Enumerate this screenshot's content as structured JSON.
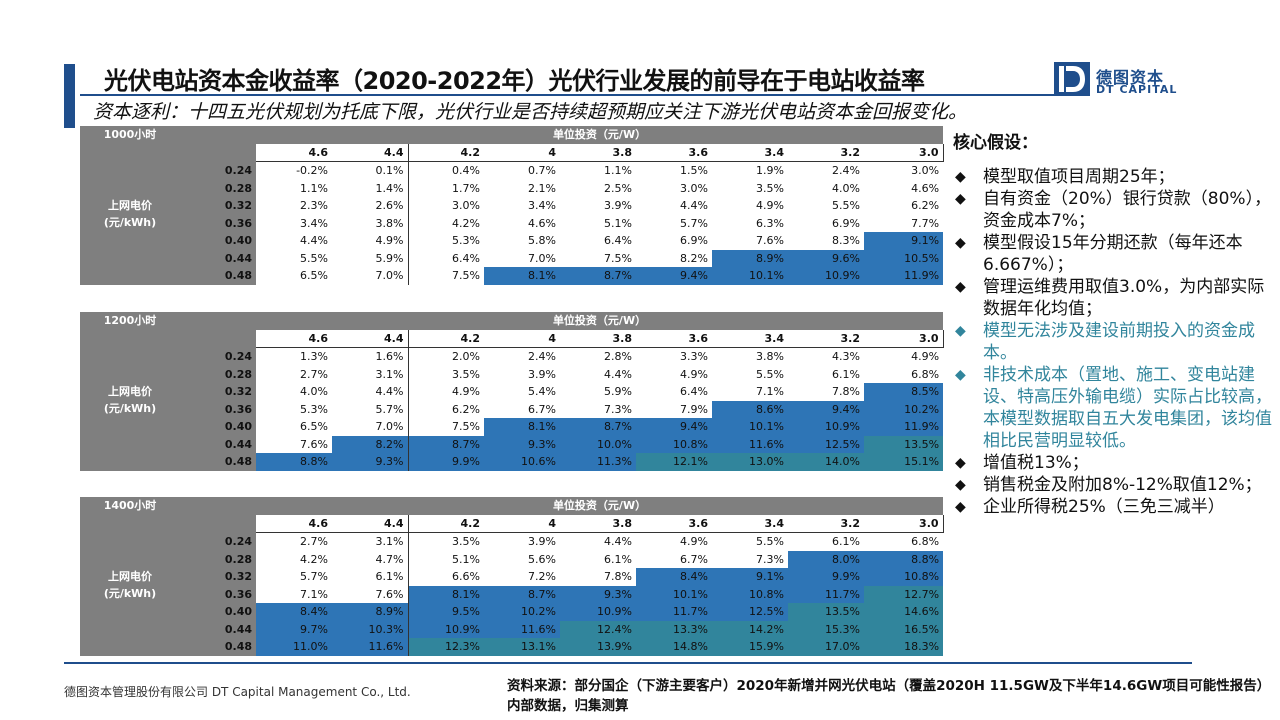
{
  "title": "光伏电站资本金收益率（2020-2022年）光伏行业发展的前导在于电站收益率",
  "subtitle": "资本逐利：十四五光伏规划为托底下限，光伏行业是否持续超预期应关注下游光伏电站资本金回报变化。",
  "logo": {
    "cn": "德图资本",
    "en": "DT CAPITAL",
    "mark": "D"
  },
  "tables": [
    {
      "hours": "1000小时",
      "investment_label": "单位投资（元/W）",
      "price_label_1": "上网电价",
      "price_label_2": "(元/kWh)",
      "investments": [
        "4.6",
        "4.4",
        "4.2",
        "4",
        "3.8",
        "3.6",
        "3.4",
        "3.2",
        "3.0"
      ],
      "prices": [
        "0.24",
        "0.28",
        "0.32",
        "0.36",
        "0.40",
        "0.44",
        "0.48"
      ],
      "rows": [
        [
          "-0.2%",
          "0.1%",
          "0.4%",
          "0.7%",
          "1.1%",
          "1.5%",
          "1.9%",
          "2.4%",
          "3.0%"
        ],
        [
          "1.1%",
          "1.4%",
          "1.7%",
          "2.1%",
          "2.5%",
          "3.0%",
          "3.5%",
          "4.0%",
          "4.6%"
        ],
        [
          "2.3%",
          "2.6%",
          "3.0%",
          "3.4%",
          "3.9%",
          "4.4%",
          "4.9%",
          "5.5%",
          "6.2%"
        ],
        [
          "3.4%",
          "3.8%",
          "4.2%",
          "4.6%",
          "5.1%",
          "5.7%",
          "6.3%",
          "6.9%",
          "7.7%"
        ],
        [
          "4.4%",
          "4.9%",
          "5.3%",
          "5.8%",
          "6.4%",
          "6.9%",
          "7.6%",
          "8.3%",
          "9.1%"
        ],
        [
          "5.5%",
          "5.9%",
          "6.4%",
          "7.0%",
          "7.5%",
          "8.2%",
          "8.9%",
          "9.6%",
          "10.5%"
        ],
        [
          "6.5%",
          "7.0%",
          "7.5%",
          "8.1%",
          "8.7%",
          "9.4%",
          "10.1%",
          "10.9%",
          "11.9%"
        ]
      ]
    },
    {
      "hours": "1200小时",
      "investment_label": "单位投资（元/W）",
      "price_label_1": "上网电价",
      "price_label_2": "(元/kWh)",
      "investments": [
        "4.6",
        "4.4",
        "4.2",
        "4",
        "3.8",
        "3.6",
        "3.4",
        "3.2",
        "3.0"
      ],
      "prices": [
        "0.24",
        "0.28",
        "0.32",
        "0.36",
        "0.40",
        "0.44",
        "0.48"
      ],
      "rows": [
        [
          "1.3%",
          "1.6%",
          "2.0%",
          "2.4%",
          "2.8%",
          "3.3%",
          "3.8%",
          "4.3%",
          "4.9%"
        ],
        [
          "2.7%",
          "3.1%",
          "3.5%",
          "3.9%",
          "4.4%",
          "4.9%",
          "5.5%",
          "6.1%",
          "6.8%"
        ],
        [
          "4.0%",
          "4.4%",
          "4.9%",
          "5.4%",
          "5.9%",
          "6.4%",
          "7.1%",
          "7.8%",
          "8.5%"
        ],
        [
          "5.3%",
          "5.7%",
          "6.2%",
          "6.7%",
          "7.3%",
          "7.9%",
          "8.6%",
          "9.4%",
          "10.2%"
        ],
        [
          "6.5%",
          "7.0%",
          "7.5%",
          "8.1%",
          "8.7%",
          "9.4%",
          "10.1%",
          "10.9%",
          "11.9%"
        ],
        [
          "7.6%",
          "8.2%",
          "8.7%",
          "9.3%",
          "10.0%",
          "10.8%",
          "11.6%",
          "12.5%",
          "13.5%"
        ],
        [
          "8.8%",
          "9.3%",
          "9.9%",
          "10.6%",
          "11.3%",
          "12.1%",
          "13.0%",
          "14.0%",
          "15.1%"
        ]
      ]
    },
    {
      "hours": "1400小时",
      "investment_label": "单位投资（元/W）",
      "price_label_1": "上网电价",
      "price_label_2": "(元/kWh)",
      "investments": [
        "4.6",
        "4.4",
        "4.2",
        "4",
        "3.8",
        "3.6",
        "3.4",
        "3.2",
        "3.0"
      ],
      "prices": [
        "0.24",
        "0.28",
        "0.32",
        "0.36",
        "0.40",
        "0.44",
        "0.48"
      ],
      "rows": [
        [
          "2.7%",
          "3.1%",
          "3.5%",
          "3.9%",
          "4.4%",
          "4.9%",
          "5.5%",
          "6.1%",
          "6.8%"
        ],
        [
          "4.2%",
          "4.7%",
          "5.1%",
          "5.6%",
          "6.1%",
          "6.7%",
          "7.3%",
          "8.0%",
          "8.8%"
        ],
        [
          "5.7%",
          "6.1%",
          "6.6%",
          "7.2%",
          "7.8%",
          "8.4%",
          "9.1%",
          "9.9%",
          "10.8%"
        ],
        [
          "7.1%",
          "7.6%",
          "8.1%",
          "8.7%",
          "9.3%",
          "10.1%",
          "10.8%",
          "11.7%",
          "12.7%"
        ],
        [
          "8.4%",
          "8.9%",
          "9.5%",
          "10.2%",
          "10.9%",
          "11.7%",
          "12.5%",
          "13.5%",
          "14.6%"
        ],
        [
          "9.7%",
          "10.3%",
          "10.9%",
          "11.6%",
          "12.4%",
          "13.3%",
          "14.2%",
          "15.3%",
          "16.5%"
        ],
        [
          "11.0%",
          "11.6%",
          "12.3%",
          "13.1%",
          "13.9%",
          "14.8%",
          "15.9%",
          "17.0%",
          "18.3%"
        ]
      ]
    }
  ],
  "colors": {
    "blue": "#2e75b6",
    "teal": "#31859c",
    "header_gray": "#7f7f7f",
    "brand": "#1f4e8c"
  },
  "assumptions": {
    "heading": "核心假设：",
    "group1": [
      "模型取值项目周期25年；",
      "自有资金（20%）银行贷款（80%），资金成本7%；",
      "模型假设15年分期还款（每年还本6.667%）；",
      "管理运维费用取值3.0%，为内部实际数据年化均值；"
    ],
    "group2": [
      "模型无法涉及建设前期投入的资金成本。",
      "非技术成本（置地、施工、变电站建设、特高压外输电缆）实际占比较高，本模型数据取自五大发电集团，该均值相比民营明显较低。"
    ],
    "group3": [
      "增值税13%；",
      "销售税金及附加8%-12%取值12%；",
      "企业所得税25%（三免三减半）"
    ]
  },
  "footer": {
    "company": "德图资本管理股份有限公司  DT Capital Management Co., Ltd.",
    "source": "资料来源：部分国企（下游主要客户）2020年新增并网光伏电站（覆盖2020H 11.5GW及下半年14.6GW项目可能性报告）内部数据，归集测算"
  }
}
